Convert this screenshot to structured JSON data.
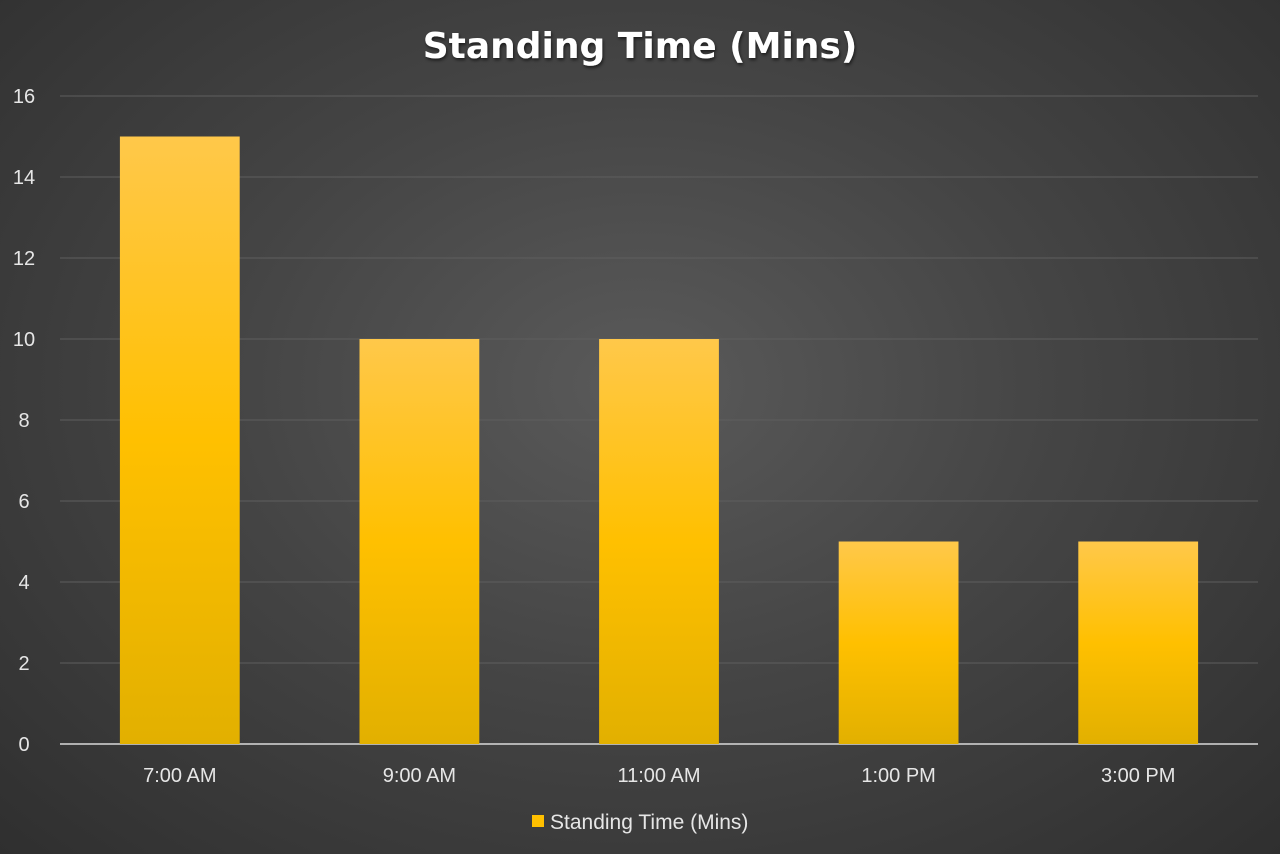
{
  "chart_data": {
    "type": "bar",
    "title": "Standing Time (Mins)",
    "categories": [
      "7:00 AM",
      "9:00 AM",
      "11:00 AM",
      "1:00 PM",
      "3:00 PM"
    ],
    "series": [
      {
        "name": "Standing Time (Mins)",
        "values": [
          15,
          10,
          10,
          5,
          5
        ],
        "color": "#FFC000"
      }
    ],
    "xlabel": "",
    "ylabel": "",
    "ylim": [
      0,
      16
    ],
    "yticks": [
      0,
      2,
      4,
      6,
      8,
      10,
      12,
      14,
      16
    ],
    "grid": true,
    "legend": "bottom"
  },
  "colors": {
    "bar_top": "#ffc84a",
    "bar_mid": "#ffc000",
    "bar_bottom": "#e2b000",
    "grid": "#5e5e5e",
    "axis": "#d9d9d9",
    "text": "#e6e6e6"
  }
}
